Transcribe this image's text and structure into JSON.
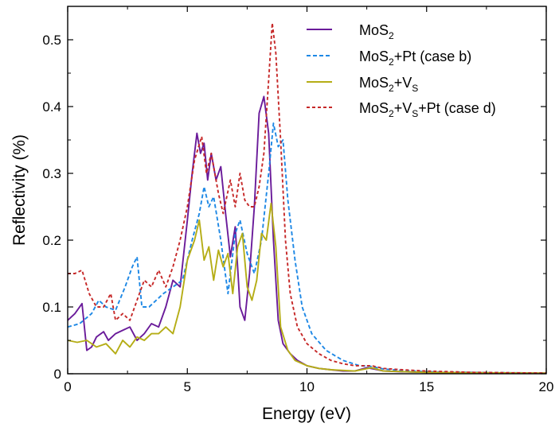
{
  "chart_data": {
    "type": "line",
    "xlabel": "Energy (eV)",
    "ylabel": "Reflectivity (%)",
    "xlim": [
      0,
      20
    ],
    "ylim": [
      0,
      0.55
    ],
    "x_ticks": [
      "0",
      "5",
      "10",
      "15",
      "20"
    ],
    "y_ticks": [
      "0",
      "0.1",
      "0.2",
      "0.3",
      "0.4",
      "0.5"
    ],
    "grid": false,
    "legend_position": "top-right",
    "series": [
      {
        "name": "MoS2",
        "legend": [
          {
            "t": "MoS"
          },
          {
            "t": "2",
            "sub": true
          }
        ],
        "color": "#6a1b9a",
        "dash": "solid",
        "x": [
          0,
          0.3,
          0.6,
          0.8,
          1.0,
          1.2,
          1.5,
          1.7,
          2.0,
          2.3,
          2.6,
          2.9,
          3.2,
          3.5,
          3.8,
          4.1,
          4.4,
          4.7,
          5.0,
          5.2,
          5.4,
          5.55,
          5.7,
          5.85,
          6.0,
          6.2,
          6.4,
          6.6,
          6.8,
          7.0,
          7.2,
          7.4,
          7.6,
          7.8,
          8.0,
          8.2,
          8.4,
          8.6,
          8.8,
          9.0,
          9.3,
          9.6,
          10.0,
          10.5,
          11.0,
          11.5,
          12.0,
          12.5,
          12.8,
          13.2,
          14.0,
          15.0,
          17.0,
          20.0
        ],
        "y": [
          0.08,
          0.09,
          0.105,
          0.035,
          0.04,
          0.055,
          0.063,
          0.05,
          0.06,
          0.065,
          0.07,
          0.05,
          0.06,
          0.075,
          0.07,
          0.1,
          0.14,
          0.13,
          0.23,
          0.3,
          0.36,
          0.33,
          0.345,
          0.29,
          0.33,
          0.29,
          0.31,
          0.24,
          0.175,
          0.22,
          0.1,
          0.08,
          0.15,
          0.25,
          0.39,
          0.415,
          0.36,
          0.2,
          0.08,
          0.045,
          0.03,
          0.02,
          0.012,
          0.008,
          0.006,
          0.004,
          0.004,
          0.009,
          0.007,
          0.004,
          0.003,
          0.002,
          0.001,
          0.001
        ]
      },
      {
        "name": "MoS2+Pt (case b)",
        "legend": [
          {
            "t": "MoS"
          },
          {
            "t": "2",
            "sub": true
          },
          {
            "t": "+Pt (case b)"
          }
        ],
        "color": "#1e88e5",
        "dash": "5,3",
        "x": [
          0,
          0.5,
          1.0,
          1.3,
          1.6,
          2.0,
          2.4,
          2.7,
          2.9,
          3.1,
          3.4,
          3.7,
          4.0,
          4.4,
          4.8,
          5.2,
          5.5,
          5.7,
          5.9,
          6.1,
          6.4,
          6.7,
          7.0,
          7.2,
          7.5,
          7.8,
          8.1,
          8.4,
          8.6,
          8.8,
          9.0,
          9.2,
          9.5,
          9.8,
          10.2,
          10.8,
          11.5,
          12.2,
          12.7,
          13.2,
          14.0,
          15.0,
          17.0,
          20.0
        ],
        "y": [
          0.07,
          0.075,
          0.09,
          0.11,
          0.1,
          0.095,
          0.13,
          0.16,
          0.175,
          0.1,
          0.1,
          0.11,
          0.12,
          0.13,
          0.14,
          0.2,
          0.24,
          0.28,
          0.25,
          0.265,
          0.2,
          0.12,
          0.21,
          0.23,
          0.18,
          0.15,
          0.2,
          0.3,
          0.375,
          0.34,
          0.35,
          0.26,
          0.17,
          0.1,
          0.06,
          0.035,
          0.02,
          0.012,
          0.011,
          0.007,
          0.005,
          0.003,
          0.002,
          0.001
        ]
      },
      {
        "name": "MoS2+VS",
        "legend": [
          {
            "t": "MoS"
          },
          {
            "t": "2",
            "sub": true
          },
          {
            "t": "+V"
          },
          {
            "t": "S",
            "sub": true
          }
        ],
        "color": "#b5ad16",
        "dash": "solid",
        "x": [
          0,
          0.4,
          0.8,
          1.2,
          1.6,
          2.0,
          2.3,
          2.6,
          2.9,
          3.2,
          3.5,
          3.8,
          4.1,
          4.4,
          4.7,
          5.0,
          5.3,
          5.5,
          5.7,
          5.9,
          6.1,
          6.3,
          6.5,
          6.7,
          6.9,
          7.1,
          7.3,
          7.5,
          7.7,
          7.9,
          8.1,
          8.3,
          8.5,
          8.7,
          8.9,
          9.2,
          9.5,
          10.0,
          10.5,
          11.0,
          12.0,
          12.7,
          13.2,
          15.0,
          20.0
        ],
        "y": [
          0.05,
          0.047,
          0.05,
          0.04,
          0.045,
          0.03,
          0.05,
          0.04,
          0.055,
          0.05,
          0.06,
          0.06,
          0.07,
          0.06,
          0.1,
          0.17,
          0.2,
          0.23,
          0.17,
          0.19,
          0.14,
          0.185,
          0.16,
          0.18,
          0.12,
          0.19,
          0.21,
          0.13,
          0.11,
          0.14,
          0.21,
          0.2,
          0.255,
          0.19,
          0.07,
          0.035,
          0.02,
          0.012,
          0.008,
          0.006,
          0.004,
          0.009,
          0.004,
          0.002,
          0.001
        ]
      },
      {
        "name": "MoS2+VS+Pt (case d)",
        "legend": [
          {
            "t": "MoS"
          },
          {
            "t": "2",
            "sub": true
          },
          {
            "t": "+V"
          },
          {
            "t": "S",
            "sub": true
          },
          {
            "t": "+Pt (case d)"
          }
        ],
        "color": "#c62828",
        "dash": "4,3",
        "x": [
          0,
          0.3,
          0.6,
          0.9,
          1.2,
          1.5,
          1.8,
          2.0,
          2.3,
          2.6,
          2.9,
          3.2,
          3.5,
          3.8,
          4.1,
          4.4,
          4.7,
          5.0,
          5.3,
          5.6,
          5.8,
          6.0,
          6.3,
          6.5,
          6.8,
          7.0,
          7.2,
          7.4,
          7.6,
          7.8,
          8.0,
          8.2,
          8.4,
          8.55,
          8.7,
          8.9,
          9.1,
          9.3,
          9.6,
          10.0,
          10.5,
          11.0,
          11.5,
          12.0,
          12.7,
          13.2,
          14.0,
          15.0,
          17.0,
          20.0
        ],
        "y": [
          0.15,
          0.15,
          0.155,
          0.12,
          0.1,
          0.1,
          0.12,
          0.08,
          0.09,
          0.08,
          0.11,
          0.14,
          0.13,
          0.155,
          0.13,
          0.16,
          0.2,
          0.25,
          0.32,
          0.355,
          0.3,
          0.33,
          0.27,
          0.24,
          0.29,
          0.25,
          0.3,
          0.26,
          0.25,
          0.25,
          0.28,
          0.33,
          0.44,
          0.525,
          0.48,
          0.35,
          0.2,
          0.12,
          0.07,
          0.045,
          0.03,
          0.02,
          0.015,
          0.012,
          0.012,
          0.008,
          0.006,
          0.004,
          0.002,
          0.001
        ]
      }
    ]
  }
}
